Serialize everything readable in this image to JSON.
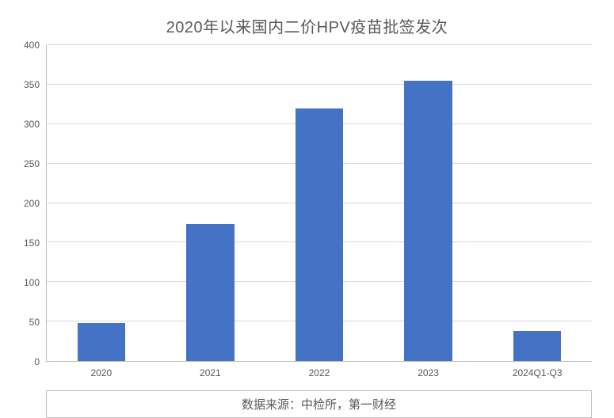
{
  "chart": {
    "type": "bar",
    "title": "2020年以来国内二价HPV疫苗批签发次",
    "title_fontsize": 20,
    "title_color": "#595959",
    "categories": [
      "2020",
      "2021",
      "2022",
      "2023",
      "2024Q1-Q3"
    ],
    "values": [
      48,
      173,
      320,
      355,
      38
    ],
    "bar_color": "#4472c4",
    "ylim": [
      0,
      400
    ],
    "ytick_step": 50,
    "yticks": [
      0,
      50,
      100,
      150,
      200,
      250,
      300,
      350,
      400
    ],
    "grid_color": "#d9d9d9",
    "axis_color": "#bfbfbf",
    "background_color": "#ffffff",
    "label_fontsize": 12,
    "label_color": "#595959",
    "bar_width": 0.44,
    "source_label": "数据来源：中检所，第一财经",
    "source_fontsize": 15
  }
}
